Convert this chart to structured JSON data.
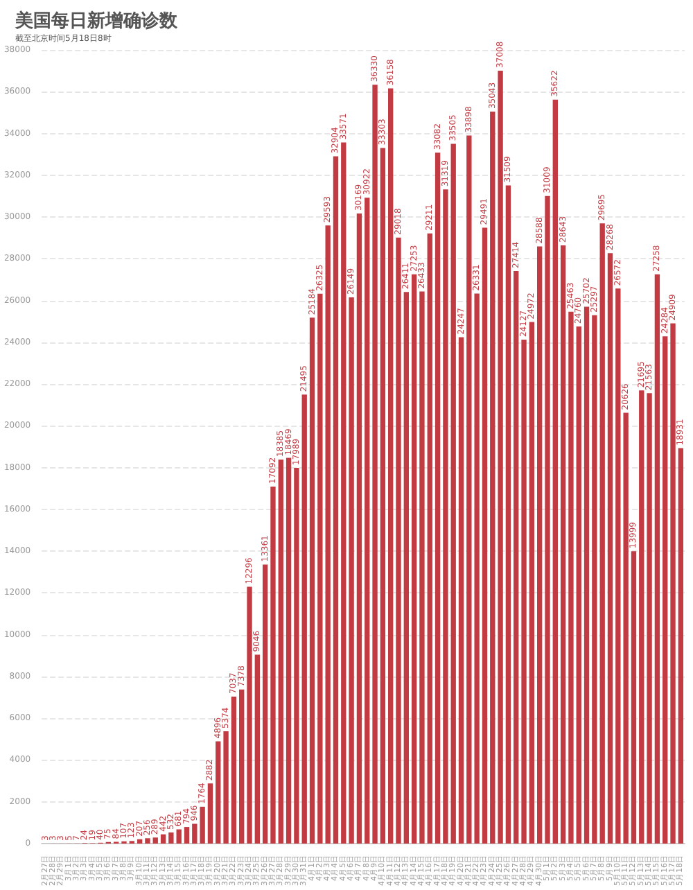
{
  "chart_data": {
    "type": "bar",
    "title": "美国每日新增确诊数",
    "subtitle": "截至北京时间5月18日8时",
    "categories": [
      "2月27日",
      "2月28日",
      "2月29日",
      "3月1日",
      "3月2日",
      "3月3日",
      "3月4日",
      "3月5日",
      "3月6日",
      "3月7日",
      "3月8日",
      "3月9日",
      "3月10日",
      "3月11日",
      "3月12日",
      "3月13日",
      "3月14日",
      "3月15日",
      "3月16日",
      "3月17日",
      "3月18日",
      "3月19日",
      "3月20日",
      "3月21日",
      "3月22日",
      "3月23日",
      "3月24日",
      "3月25日",
      "3月26日",
      "3月27日",
      "3月28日",
      "3月29日",
      "3月30日",
      "3月31日",
      "4月1日",
      "4月2日",
      "4月3日",
      "4月4日",
      "4月5日",
      "4月6日",
      "4月7日",
      "4月8日",
      "4月9日",
      "4月10日",
      "4月11日",
      "4月12日",
      "4月13日",
      "4月14日",
      "4月15日",
      "4月16日",
      "4月17日",
      "4月18日",
      "4月19日",
      "4月20日",
      "4月21日",
      "4月22日",
      "4月23日",
      "4月24日",
      "4月25日",
      "4月26日",
      "4月27日",
      "4月28日",
      "4月29日",
      "4月30日",
      "5月1日",
      "5月2日",
      "5月3日",
      "5月4日",
      "5月5日",
      "5月6日",
      "5月7日",
      "5月8日",
      "5月9日",
      "5月10日",
      "5月11日",
      "5月12日",
      "5月13日",
      "5月14日",
      "5月15日",
      "5月16日",
      "5月17日",
      "5月18日"
    ],
    "values": [
      3,
      3,
      3,
      5,
      7,
      24,
      19,
      40,
      75,
      84,
      107,
      123,
      207,
      256,
      289,
      442,
      532,
      681,
      794,
      946,
      1764,
      2882,
      4896,
      5374,
      7037,
      7378,
      12296,
      9046,
      13361,
      17092,
      18385,
      18469,
      17989,
      21495,
      25184,
      26325,
      29593,
      32904,
      33571,
      26149,
      30169,
      30922,
      36330,
      33303,
      36158,
      29018,
      26411,
      27253,
      26433,
      29211,
      33082,
      31319,
      33505,
      24247,
      33898,
      26331,
      29491,
      35043,
      37008,
      31509,
      27414,
      24127,
      24972,
      28588,
      31009,
      35622,
      28643,
      25463,
      24760,
      25702,
      25297,
      29695,
      28268,
      26572,
      20626,
      13999,
      21695,
      21563,
      27258,
      24284,
      24909,
      18931
    ],
    "color": "#c23a42",
    "ylim": [
      0,
      38000
    ],
    "yticks": [
      0,
      2000,
      4000,
      6000,
      8000,
      10000,
      12000,
      14000,
      16000,
      18000,
      20000,
      22000,
      24000,
      26000,
      28000,
      30000,
      32000,
      34000,
      36000,
      38000
    ],
    "grid": "y",
    "data_labels": true
  }
}
